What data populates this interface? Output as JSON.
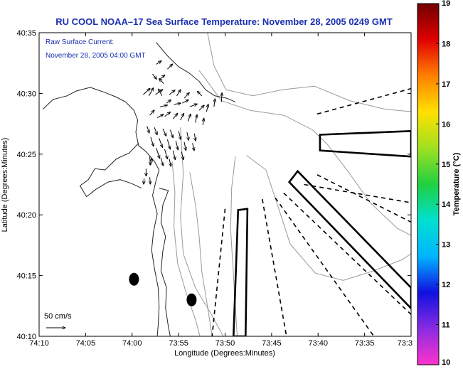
{
  "title": "RU COOL  NOAA–17  Sea Surface Temperature:  November 28, 2005 0249 GMT",
  "chart_data": {
    "type": "map",
    "title": "RU COOL  NOAA–17  Sea Surface Temperature:  November 28, 2005 0249 GMT",
    "xlabel": "Longitude (Degrees:Minutes)",
    "ylabel": "Latitude (Degrees:Minutes)",
    "x_unit": "minutes west of 74°W offset: x = 74°10'W at 0, 73°30'W at 40",
    "xlim": [
      0,
      40
    ],
    "ylim": [
      0,
      25
    ],
    "x_ticks": [
      {
        "v": 0,
        "label": "74:10"
      },
      {
        "v": 5,
        "label": "74:05"
      },
      {
        "v": 10,
        "label": "74:00"
      },
      {
        "v": 15,
        "label": "73:55"
      },
      {
        "v": 20,
        "label": "73:50"
      },
      {
        "v": 25,
        "label": "73:45"
      },
      {
        "v": 30,
        "label": "73:40"
      },
      {
        "v": 35,
        "label": "73:35"
      },
      {
        "v": 40,
        "label": "73:3"
      }
    ],
    "y_ticks": [
      {
        "v": 0,
        "label": "40:10"
      },
      {
        "v": 5,
        "label": "40:15"
      },
      {
        "v": 10,
        "label": "40:20"
      },
      {
        "v": 15,
        "label": "40:25"
      },
      {
        "v": 20,
        "label": "40:30"
      },
      {
        "v": 25,
        "label": "40:35"
      }
    ],
    "annotations": {
      "current_label": "Raw Surface Current:",
      "current_time": "November 28, 2005 04:00 GMT",
      "scale_label": "50 cm/s",
      "scale_vector_cm_s": 50
    },
    "colorbar": {
      "label": "Temperature (°C)",
      "min": 10,
      "max": 19,
      "ticks": [
        10,
        11,
        12,
        13,
        14,
        15,
        16,
        17,
        18,
        19
      ],
      "stops": [
        "#ff33cc",
        "#8a2be2",
        "#1010e0",
        "#00b4ff",
        "#00e0d0",
        "#20d040",
        "#a0e020",
        "#ffe000",
        "#ff8000",
        "#e00000",
        "#700000"
      ]
    },
    "coastline_lines": [
      [
        [
          0.4,
          18.7
        ],
        [
          1.5,
          19.5
        ],
        [
          3,
          19.8
        ],
        [
          4,
          20.2
        ],
        [
          5.5,
          20.5
        ],
        [
          7,
          20.1
        ],
        [
          8.3,
          19.7
        ],
        [
          9.3,
          19.3
        ],
        [
          10.2,
          18.6
        ],
        [
          10.6,
          17.8
        ],
        [
          10.4,
          16.8
        ],
        [
          10.7,
          15.7
        ],
        [
          11.5,
          15.2
        ],
        [
          12.4,
          14.4
        ],
        [
          12.9,
          13.7
        ],
        [
          12.6,
          12.9
        ],
        [
          12.2,
          11.6
        ],
        [
          12.7,
          10.1
        ],
        [
          12.3,
          8.6
        ],
        [
          12.1,
          7.1
        ],
        [
          12.4,
          5.6
        ],
        [
          12.8,
          4.0
        ],
        [
          12.9,
          2.4
        ],
        [
          12.8,
          0.9
        ],
        [
          12.7,
          0.0
        ]
      ],
      [
        [
          12.6,
          24.2
        ],
        [
          13.8,
          23.1
        ],
        [
          15,
          22.2
        ],
        [
          16.1,
          21.7
        ],
        [
          17.2,
          21.0
        ],
        [
          17.9,
          20.3
        ],
        [
          18.9,
          19.8
        ],
        [
          20.2,
          19.6
        ],
        [
          21.1,
          19.3
        ]
      ],
      [
        [
          10.7,
          15.9
        ],
        [
          9.7,
          15.1
        ],
        [
          8.3,
          14.6
        ],
        [
          7.1,
          13.7
        ],
        [
          6.0,
          13.8
        ],
        [
          5.3,
          12.9
        ],
        [
          4.4,
          12.4
        ],
        [
          5.1,
          11.5
        ],
        [
          6.1,
          12.1
        ],
        [
          7.4,
          12.7
        ],
        [
          8.7,
          12.9
        ],
        [
          9.9,
          12.6
        ],
        [
          11.0,
          12.2
        ]
      ],
      [
        [
          12.9,
          12.2
        ],
        [
          13.9,
          12.0
        ],
        [
          13.3,
          10.8
        ],
        [
          13.1,
          9.4
        ],
        [
          13.6,
          8.2
        ],
        [
          13.3,
          7.0
        ],
        [
          13.1,
          5.4
        ],
        [
          13.7,
          4.0
        ],
        [
          13.6,
          2.3
        ],
        [
          13.9,
          0.8
        ],
        [
          14.1,
          0.0
        ]
      ]
    ],
    "isobath_lines": [
      [
        [
          18.1,
          25.0
        ],
        [
          18.8,
          22.3
        ],
        [
          20.1,
          20.3
        ],
        [
          23.0,
          19.8
        ],
        [
          26.1,
          20.3
        ],
        [
          29.6,
          20.6
        ],
        [
          33.4,
          19.4
        ],
        [
          37.2,
          18.7
        ],
        [
          40.0,
          18.5
        ]
      ],
      [
        [
          17.2,
          21.9
        ],
        [
          19.6,
          19.4
        ],
        [
          22.7,
          18.6
        ],
        [
          26.3,
          18.2
        ],
        [
          29.4,
          17.0
        ],
        [
          31.0,
          15.8
        ],
        [
          33.2,
          13.6
        ],
        [
          35.6,
          11.0
        ],
        [
          38.5,
          8.9
        ],
        [
          40.0,
          8.3
        ]
      ],
      [
        [
          21.1,
          14.8
        ],
        [
          20.7,
          12.2
        ],
        [
          20.6,
          8.8
        ],
        [
          20.9,
          5.0
        ],
        [
          21.3,
          0.0
        ]
      ],
      [
        [
          22.3,
          14.9
        ],
        [
          24.4,
          13.7
        ],
        [
          25.6,
          10.9
        ],
        [
          27.0,
          7.6
        ],
        [
          29.7,
          5.2
        ],
        [
          32.7,
          4.6
        ],
        [
          36.0,
          5.4
        ],
        [
          39.0,
          6.3
        ],
        [
          40.0,
          6.8
        ]
      ],
      [
        [
          15.2,
          17.2
        ],
        [
          15.5,
          13.4
        ],
        [
          15.2,
          9.9
        ],
        [
          15.5,
          6.8
        ],
        [
          16.8,
          4.0
        ],
        [
          18.6,
          1.7
        ],
        [
          19.8,
          0.0
        ]
      ],
      [
        [
          14.3,
          14.4
        ],
        [
          14.6,
          11.9
        ],
        [
          14.5,
          9.0
        ],
        [
          14.9,
          6.0
        ],
        [
          15.8,
          3.6
        ],
        [
          16.8,
          1.4
        ],
        [
          17.3,
          0.0
        ]
      ],
      [
        [
          16.2,
          13.5
        ],
        [
          16.8,
          10.9
        ],
        [
          17.2,
          8.3
        ],
        [
          17.5,
          5.3
        ],
        [
          18.1,
          2.5
        ],
        [
          18.6,
          0.0
        ]
      ]
    ],
    "solid_polygons": [
      [
        [
          30.2,
          16.6
        ],
        [
          40,
          16.9
        ],
        [
          40,
          14.8
        ],
        [
          30.2,
          15.3
        ]
      ],
      [
        [
          26.9,
          12.7
        ],
        [
          27.8,
          13.6
        ],
        [
          40,
          4.0
        ],
        [
          40,
          2.3
        ]
      ],
      [
        [
          21.4,
          10.4
        ],
        [
          22.4,
          10.5
        ],
        [
          22.2,
          0.0
        ],
        [
          20.9,
          0.0
        ]
      ]
    ],
    "dashed_lines": [
      [
        [
          29.9,
          18.3
        ],
        [
          40,
          20.4
        ]
      ],
      [
        [
          29.9,
          13.3
        ],
        [
          40,
          9.4
        ]
      ],
      [
        [
          28.5,
          12.5
        ],
        [
          40,
          11.0
        ]
      ],
      [
        [
          20.0,
          10.5
        ],
        [
          18.6,
          0.0
        ]
      ],
      [
        [
          24.0,
          11.3
        ],
        [
          26.6,
          0.0
        ]
      ],
      [
        [
          25.4,
          11.4
        ],
        [
          36.0,
          0.0
        ]
      ],
      [
        [
          26.3,
          11.8
        ],
        [
          40,
          1.8
        ]
      ]
    ],
    "markers": [
      {
        "x": 10.2,
        "y": 4.7
      },
      {
        "x": 16.4,
        "y": 3.0
      }
    ],
    "current_vectors": [
      {
        "x": 11.2,
        "y": 19.9,
        "u": 1.2,
        "v": 1.1
      },
      {
        "x": 11.8,
        "y": 19.8,
        "u": 0.8,
        "v": 1.4
      },
      {
        "x": 12.5,
        "y": 19.9,
        "u": 1.3,
        "v": 0.9
      },
      {
        "x": 13.2,
        "y": 19.8,
        "u": -0.6,
        "v": 1.2
      },
      {
        "x": 14.0,
        "y": 19.9,
        "u": 1.0,
        "v": 0.8
      },
      {
        "x": 14.8,
        "y": 19.8,
        "u": 0.7,
        "v": 1.1
      },
      {
        "x": 15.6,
        "y": 19.6,
        "u": 0.9,
        "v": 1.0
      },
      {
        "x": 12.9,
        "y": 21.1,
        "u": 1.0,
        "v": 0.9
      },
      {
        "x": 13.4,
        "y": 20.8,
        "u": -0.8,
        "v": 0.9
      },
      {
        "x": 13.8,
        "y": 22.0,
        "u": 0.9,
        "v": 0.9
      },
      {
        "x": 12.2,
        "y": 21.6,
        "u": 0.7,
        "v": -0.9
      },
      {
        "x": 12.6,
        "y": 22.4,
        "u": 0.9,
        "v": 0.6
      },
      {
        "x": 13.0,
        "y": 18.9,
        "u": 1.3,
        "v": 0.3
      },
      {
        "x": 13.7,
        "y": 19.2,
        "u": 0.8,
        "v": 0.6
      },
      {
        "x": 14.5,
        "y": 19.1,
        "u": 1.2,
        "v": 0.2
      },
      {
        "x": 15.4,
        "y": 19.2,
        "u": 1.1,
        "v": 0.6
      },
      {
        "x": 16.2,
        "y": 18.9,
        "u": 1.3,
        "v": 0.5
      },
      {
        "x": 17.2,
        "y": 18.6,
        "u": 0.9,
        "v": 0.9
      },
      {
        "x": 18.0,
        "y": 18.5,
        "u": 0.3,
        "v": 1.3
      },
      {
        "x": 18.8,
        "y": 18.9,
        "u": 0.2,
        "v": 1.4
      },
      {
        "x": 19.6,
        "y": 19.3,
        "u": 0.1,
        "v": 1.6
      },
      {
        "x": 17.5,
        "y": 19.8,
        "u": -0.8,
        "v": 0.8
      },
      {
        "x": 11.9,
        "y": 18.2,
        "u": 0.8,
        "v": 0.9
      },
      {
        "x": 12.7,
        "y": 18.0,
        "u": 1.1,
        "v": 0.6
      },
      {
        "x": 13.5,
        "y": 18.1,
        "u": 1.0,
        "v": 0.8
      },
      {
        "x": 14.4,
        "y": 17.9,
        "u": 0.8,
        "v": 1.0
      },
      {
        "x": 15.2,
        "y": 17.8,
        "u": 0.6,
        "v": 1.2
      },
      {
        "x": 16.0,
        "y": 17.7,
        "u": 0.5,
        "v": 1.3
      },
      {
        "x": 16.8,
        "y": 17.6,
        "u": 0.3,
        "v": 1.4
      },
      {
        "x": 17.6,
        "y": 17.4,
        "u": 0.2,
        "v": 1.2
      },
      {
        "x": 11.6,
        "y": 17.3,
        "u": 0.4,
        "v": -1.2
      },
      {
        "x": 12.4,
        "y": 17.2,
        "u": 0.5,
        "v": -1.3
      },
      {
        "x": 13.3,
        "y": 17.1,
        "u": 0.6,
        "v": -1.3
      },
      {
        "x": 14.1,
        "y": 17.0,
        "u": 0.5,
        "v": -1.4
      },
      {
        "x": 15.0,
        "y": 16.9,
        "u": 0.4,
        "v": -1.5
      },
      {
        "x": 15.9,
        "y": 16.8,
        "u": 0.3,
        "v": -1.4
      },
      {
        "x": 16.7,
        "y": 16.7,
        "u": 0.2,
        "v": -1.3
      },
      {
        "x": 12.0,
        "y": 16.4,
        "u": 0.5,
        "v": -1.6
      },
      {
        "x": 12.9,
        "y": 16.3,
        "u": 0.6,
        "v": -1.6
      },
      {
        "x": 13.8,
        "y": 16.2,
        "u": 0.5,
        "v": -1.7
      },
      {
        "x": 14.7,
        "y": 16.1,
        "u": 0.4,
        "v": -1.6
      },
      {
        "x": 15.6,
        "y": 16.0,
        "u": 0.3,
        "v": -1.5
      },
      {
        "x": 16.5,
        "y": 15.9,
        "u": 0.3,
        "v": -1.3
      },
      {
        "x": 12.6,
        "y": 15.5,
        "u": 0.6,
        "v": -1.8
      },
      {
        "x": 13.5,
        "y": 15.4,
        "u": 0.5,
        "v": -1.7
      },
      {
        "x": 14.4,
        "y": 15.3,
        "u": 0.4,
        "v": -1.6
      },
      {
        "x": 15.3,
        "y": 15.2,
        "u": 0.4,
        "v": -1.4
      },
      {
        "x": 13.1,
        "y": 14.7,
        "u": 0.4,
        "v": -1.4
      },
      {
        "x": 14.0,
        "y": 14.6,
        "u": 0.3,
        "v": -1.3
      },
      {
        "x": 11.9,
        "y": 14.8,
        "u": 0.1,
        "v": -1.5
      },
      {
        "x": 11.5,
        "y": 13.8,
        "u": 0.0,
        "v": -1.3
      },
      {
        "x": 11.9,
        "y": 13.1,
        "u": 0.1,
        "v": -1.2
      },
      {
        "x": 12.0,
        "y": 14.1,
        "u": 0.2,
        "v": 1.2
      },
      {
        "x": 11.3,
        "y": 13.0,
        "u": -0.1,
        "v": -1.0
      }
    ]
  }
}
